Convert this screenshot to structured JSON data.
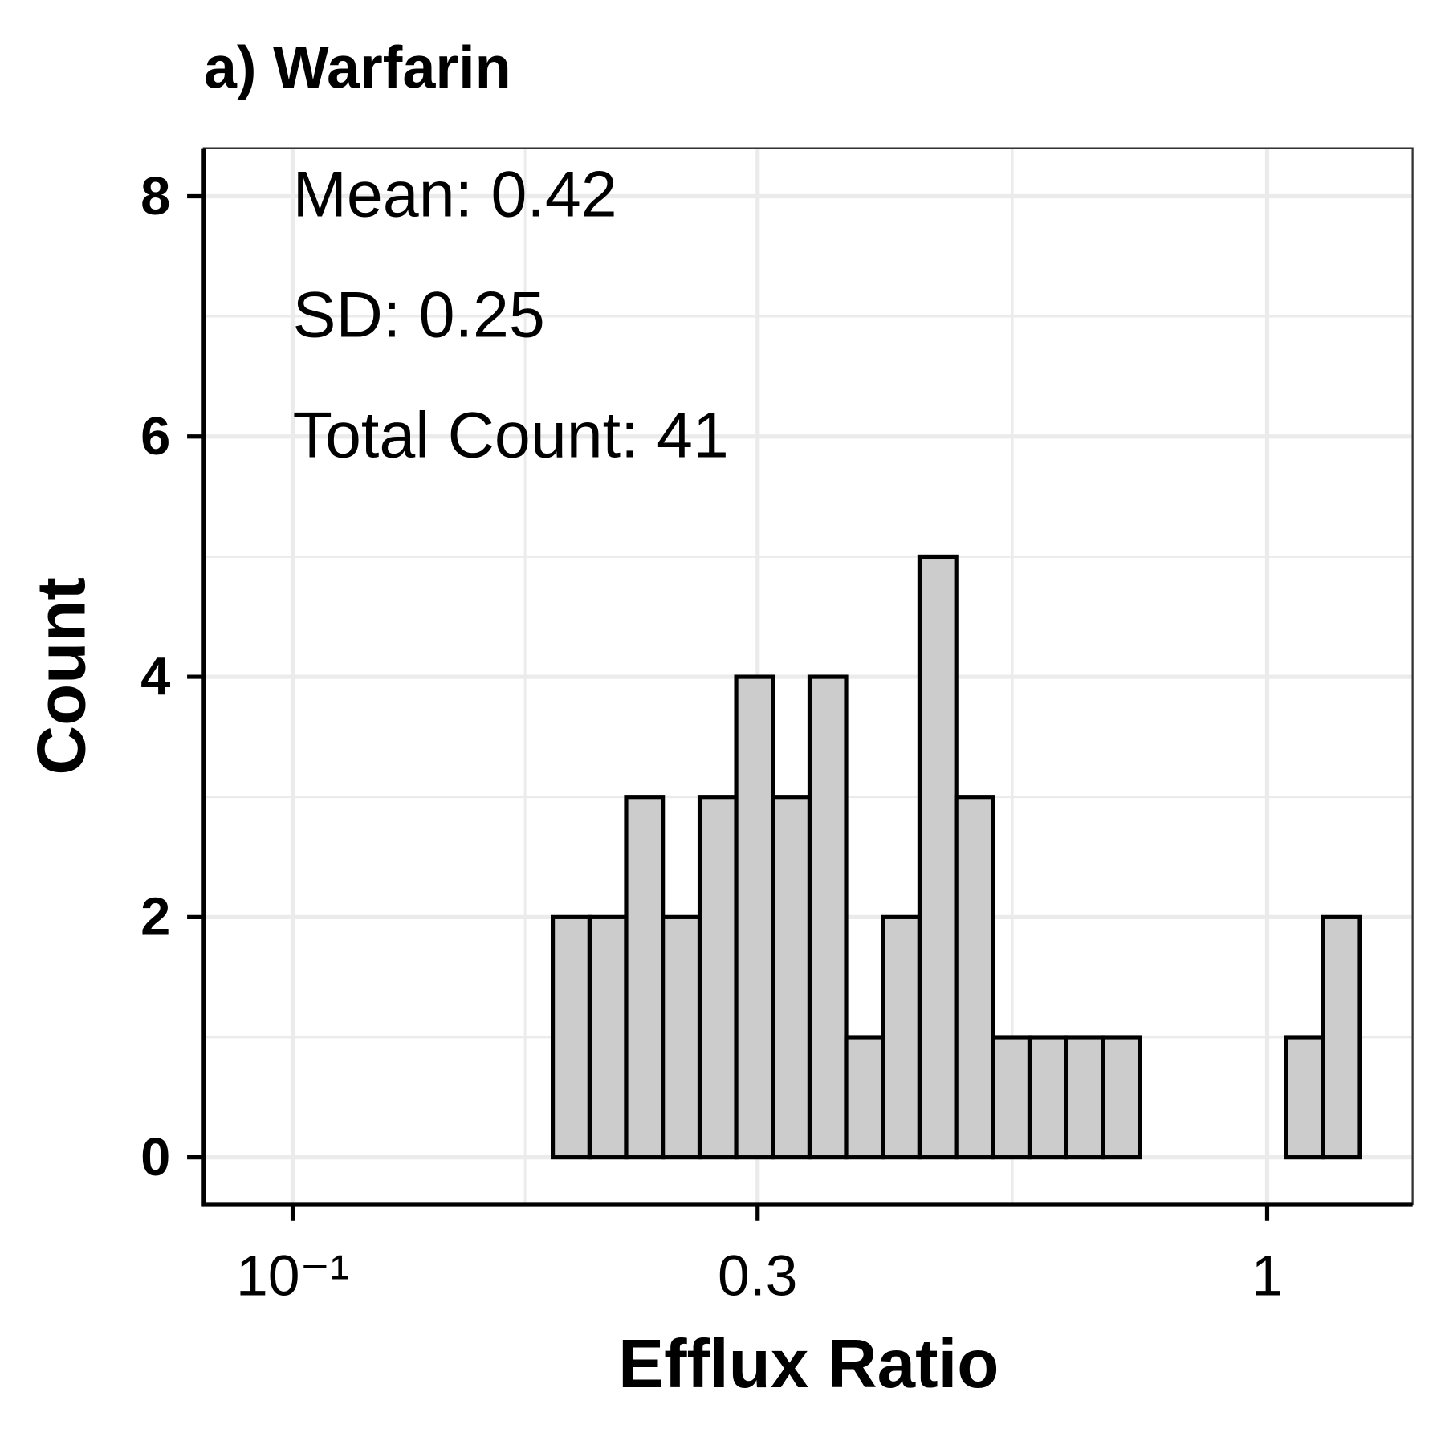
{
  "chart_data": {
    "type": "histogram",
    "title": "a) Warfarin",
    "xlabel": "Efflux Ratio",
    "ylabel": "Count",
    "annotations": [
      "Mean: 0.42",
      "SD: 0.25",
      "Total Count: 41"
    ],
    "bins": [
      0.09243,
      0.1008,
      0.1099,
      0.1199,
      0.1307,
      0.1426,
      0.1554,
      0.1696,
      0.1849,
      0.2017,
      0.2199,
      0.2398,
      0.2616,
      0.2852,
      0.311,
      0.3392,
      0.3698,
      0.4034,
      0.4398,
      0.4797,
      0.5231,
      0.5704,
      0.6221,
      0.6783,
      0.7398,
      0.8068,
      0.8798,
      0.9596,
      1.0464,
      1.141,
      1.245
    ],
    "values": [
      0,
      0,
      0,
      0,
      0,
      0,
      0,
      0,
      2,
      2,
      3,
      2,
      3,
      4,
      3,
      4,
      1,
      2,
      5,
      3,
      1,
      1,
      1,
      1,
      0,
      0,
      0,
      0,
      1,
      2
    ],
    "color": "#cccccc",
    "edgecolor": "#000000",
    "xscale": "log",
    "xlim": [
      0.08106,
      1.41
    ],
    "xticks": [
      {
        "value": 0.1,
        "label": "10⁻¹"
      },
      0.3,
      1
    ],
    "xminor": [
      0.1732,
      0.5477
    ],
    "ylim": [
      -0.39,
      8.4
    ],
    "yticks": [
      0,
      2,
      4,
      6,
      8
    ],
    "yminor": [
      1,
      3,
      5,
      7
    ],
    "grid": true
  }
}
